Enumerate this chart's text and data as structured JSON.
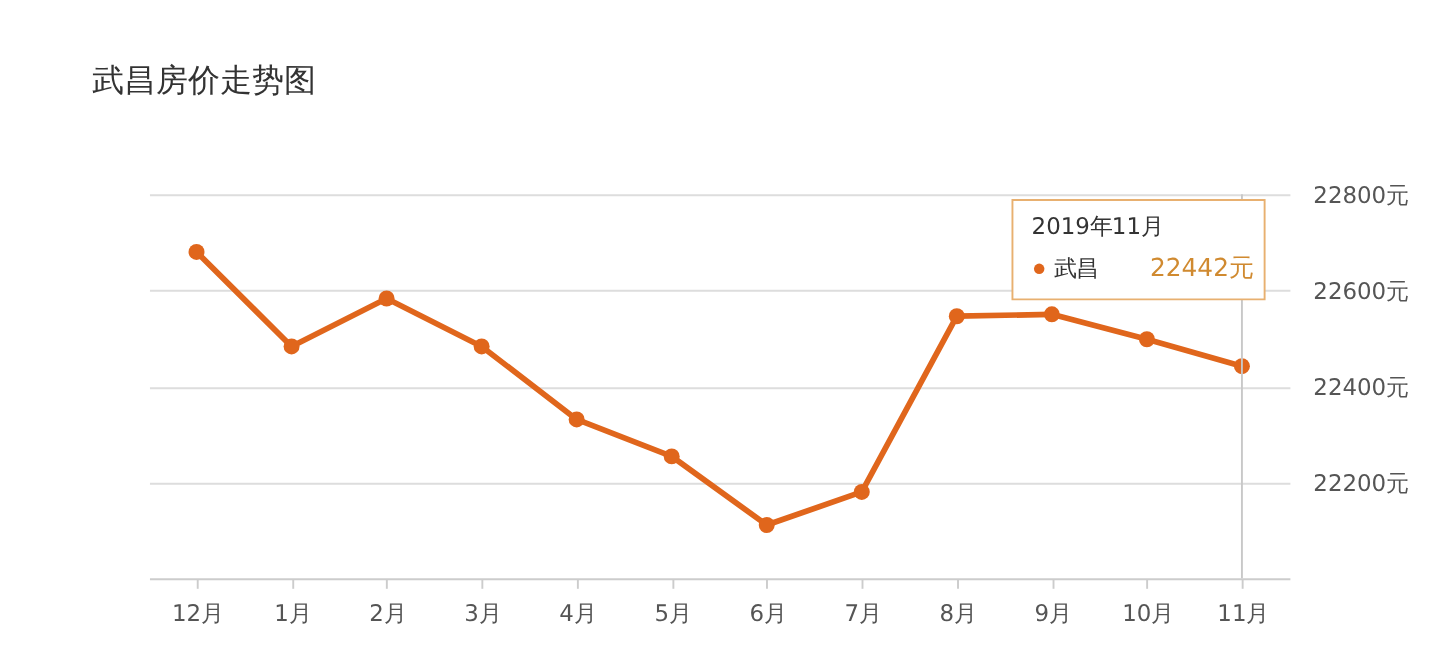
{
  "chart_data": {
    "type": "line",
    "title": "武昌房价走势图",
    "categories": [
      "12月",
      "1月",
      "2月",
      "3月",
      "4月",
      "5月",
      "6月",
      "7月",
      "8月",
      "9月",
      "10月",
      "11月"
    ],
    "series": [
      {
        "name": "武昌",
        "color": "#e0661c",
        "values": [
          22680,
          22483,
          22583,
          22483,
          22331,
          22254,
          22111,
          22180,
          22546,
          22550,
          22498,
          22442
        ],
        "value_labels": [
          null,
          null,
          null,
          null,
          null,
          null,
          null,
          null,
          null,
          null,
          null,
          "22442元"
        ]
      }
    ],
    "ylim": [
      22000,
      22800
    ],
    "yticks": [
      {
        "value": 22200,
        "label": "22200元"
      },
      {
        "value": 22400,
        "label": "22400元"
      },
      {
        "value": 22600,
        "label": "22600元"
      },
      {
        "value": 22800,
        "label": "22800元"
      }
    ],
    "grid": "y",
    "marker": "circle",
    "line_style": "solid",
    "legend": "top right",
    "ref_lines": [
      {
        "axis": "x",
        "value": "11月",
        "color": "#c8c8c8"
      }
    ],
    "annotations": [
      "2019年11月"
    ]
  }
}
